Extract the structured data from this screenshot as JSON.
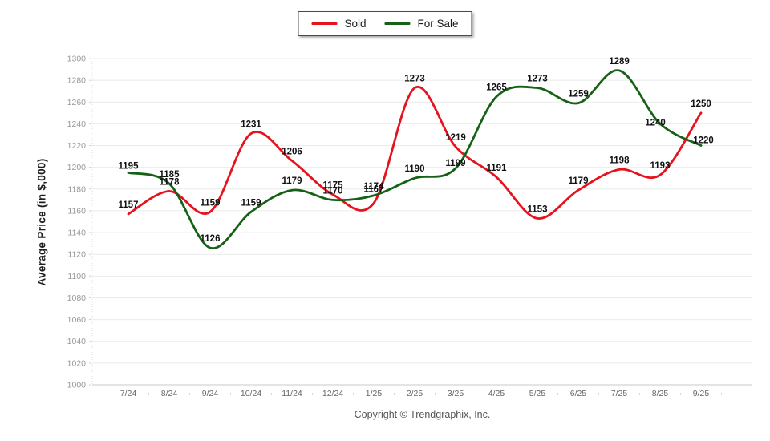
{
  "chart_data": {
    "type": "line",
    "title": "",
    "xlabel": "",
    "ylabel": "Average Price (in $,000)",
    "ylim": [
      1000,
      1300
    ],
    "ytick_step": 20,
    "grid": true,
    "legend_position": "top-center",
    "categories": [
      "7/24",
      "8/24",
      "9/24",
      "10/24",
      "11/24",
      "12/24",
      "1/25",
      "2/25",
      "3/25",
      "4/25",
      "5/25",
      "6/25",
      "7/25",
      "8/25",
      "9/25"
    ],
    "series": [
      {
        "name": "Sold",
        "color": "#e4131d",
        "values": [
          1157,
          1178,
          1159,
          1231,
          1206,
          1175,
          1167,
          1273,
          1219,
          1191,
          1153,
          1179,
          1198,
          1193,
          1250
        ]
      },
      {
        "name": "For Sale",
        "color": "#176117",
        "values": [
          1195,
          1185,
          1126,
          1159,
          1179,
          1170,
          1174,
          1190,
          1199,
          1265,
          1273,
          1259,
          1289,
          1240,
          1220
        ]
      }
    ],
    "colors": {
      "gridline": "#ebebeb",
      "baseline": "#c9c9c9",
      "y_tick_label": "#999999",
      "x_tick_label": "#666666",
      "data_label": "#111111"
    }
  },
  "footer": {
    "copyright": "Copyright © Trendgraphix, Inc."
  }
}
